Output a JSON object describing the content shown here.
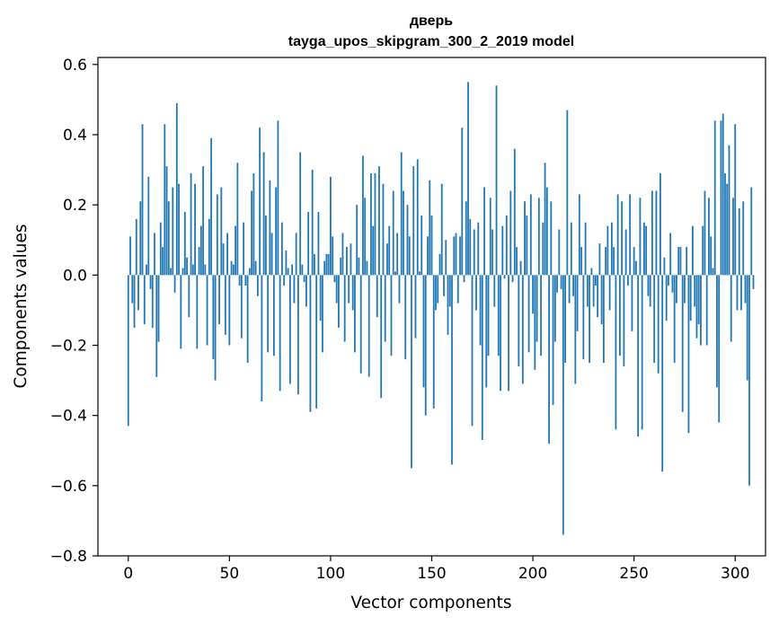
{
  "chart_data": {
    "type": "bar",
    "title": "дверь",
    "subtitle": "tayga_upos_skipgram_300_2_2019 model",
    "xlabel": "Vector components",
    "ylabel": "Components values",
    "xlim": [
      -15,
      315
    ],
    "ylim": [
      -0.8,
      0.62
    ],
    "xticks": [
      0,
      50,
      100,
      150,
      200,
      250,
      300
    ],
    "xtick_labels": [
      "0",
      "50",
      "100",
      "150",
      "200",
      "250",
      "300"
    ],
    "yticks": [
      -0.8,
      -0.6,
      -0.4,
      -0.2,
      0.0,
      0.2,
      0.4,
      0.6
    ],
    "ytick_labels": [
      "−0.8",
      "−0.6",
      "−0.4",
      "−0.2",
      "0.0",
      "0.2",
      "0.4",
      "0.6"
    ],
    "bar_color": "#1f77b4",
    "grid": false,
    "values": [
      -0.43,
      0.11,
      -0.08,
      -0.15,
      0.16,
      -0.1,
      0.21,
      0.43,
      -0.14,
      0.03,
      0.28,
      -0.04,
      -0.15,
      0.12,
      -0.29,
      -0.19,
      0.15,
      0.08,
      0.43,
      0.31,
      0.21,
      0.02,
      0.25,
      -0.05,
      0.49,
      0.26,
      -0.21,
      0.02,
      0.18,
      0.05,
      -0.12,
      0.29,
      0.03,
      0.26,
      -0.21,
      0.08,
      0.14,
      0.31,
      0.03,
      -0.2,
      0.16,
      0.39,
      -0.24,
      -0.3,
      0.23,
      -0.14,
      0.25,
      0.09,
      -0.17,
      0.12,
      -0.2,
      0.04,
      0.03,
      0.14,
      0.32,
      -0.03,
      -0.18,
      0.15,
      -0.03,
      -0.25,
      0.02,
      0.24,
      0.29,
      0.04,
      -0.06,
      0.42,
      -0.36,
      0.35,
      0.17,
      -0.22,
      0.27,
      0.12,
      -0.23,
      0.25,
      0.44,
      -0.33,
      0.15,
      -0.03,
      0.07,
      0.02,
      -0.31,
      0.03,
      -0.08,
      0.12,
      -0.34,
      0.35,
      0.03,
      -0.02,
      -0.09,
      0.18,
      -0.39,
      0.3,
      0.06,
      -0.38,
      0.18,
      -0.13,
      -0.22,
      0.04,
      0.06,
      0.06,
      0.28,
      0.11,
      -0.02,
      -0.08,
      -0.15,
      0.05,
      0.12,
      -0.19,
      0.08,
      -0.08,
      0.09,
      -0.1,
      -0.22,
      0.2,
      0.05,
      -0.28,
      0.34,
      0.22,
      0.04,
      -0.29,
      0.29,
      0.14,
      0.29,
      -0.12,
      0.31,
      -0.35,
      0.26,
      -0.19,
      0.09,
      0.14,
      -0.23,
      0.24,
      0.01,
      0.12,
      -0.08,
      0.35,
      0.24,
      -0.24,
      0.2,
      0.11,
      -0.55,
      0.31,
      -0.18,
      0.33,
      0.01,
      0.17,
      -0.32,
      -0.4,
      0.11,
      0.27,
      0.17,
      -0.38,
      -0.1,
      -0.08,
      0.06,
      0.26,
      -0.06,
      0.1,
      -0.17,
      -0.09,
      -0.54,
      0.11,
      0.12,
      -0.08,
      0.11,
      0.42,
      -0.02,
      0.21,
      0.55,
      0.16,
      -0.43,
      0.13,
      -0.1,
      0.15,
      -0.2,
      -0.47,
      0.25,
      -0.32,
      -0.23,
      0.22,
      0.13,
      -0.09,
      0.54,
      -0.23,
      -0.33,
      0.14,
      -0.01,
      0.17,
      -0.33,
      0.24,
      -0.02,
      0.36,
      0.08,
      -0.26,
      0.04,
      -0.31,
      0.21,
      0.17,
      -0.22,
      0.23,
      -0.11,
      -0.27,
      -0.19,
      0.22,
      -0.23,
      0.15,
      0.32,
      0.25,
      -0.48,
      0.21,
      -0.37,
      -0.19,
      -0.05,
      0.13,
      -0.04,
      -0.74,
      -0.25,
      0.47,
      -0.08,
      0.15,
      -0.06,
      -0.31,
      -0.16,
      0.23,
      0.08,
      -0.24,
      0.15,
      -0.09,
      -0.25,
      0.02,
      -0.09,
      -0.03,
      -0.12,
      0.09,
      -0.14,
      -0.25,
      0.08,
      0.14,
      -0.1,
      0.15,
      0.08,
      -0.44,
      0.23,
      -0.23,
      0.21,
      -0.26,
      0.13,
      -0.03,
      0.23,
      -0.16,
      0.08,
      0.04,
      -0.46,
      0.22,
      -0.44,
      0.15,
      0.14,
      -0.06,
      -0.09,
      0.24,
      -0.25,
      0.24,
      -0.28,
      0.29,
      -0.56,
      0.05,
      -0.13,
      -0.03,
      0.12,
      -0.05,
      -0.25,
      -0.08,
      0.08,
      0.08,
      -0.39,
      -0.08,
      0.08,
      -0.45,
      -0.13,
      0.14,
      -0.09,
      -0.18,
      -0.14,
      -0.2,
      0.14,
      0.24,
      -0.2,
      0.22,
      0.11,
      0.02,
      0.44,
      -0.32,
      -0.42,
      0.44,
      0.46,
      0.29,
      0.26,
      0.37,
      -0.19,
      0.22,
      0.43,
      -0.1,
      0.19,
      -0.1,
      0.21,
      -0.08,
      -0.3,
      -0.6,
      0.25,
      -0.04
    ]
  }
}
